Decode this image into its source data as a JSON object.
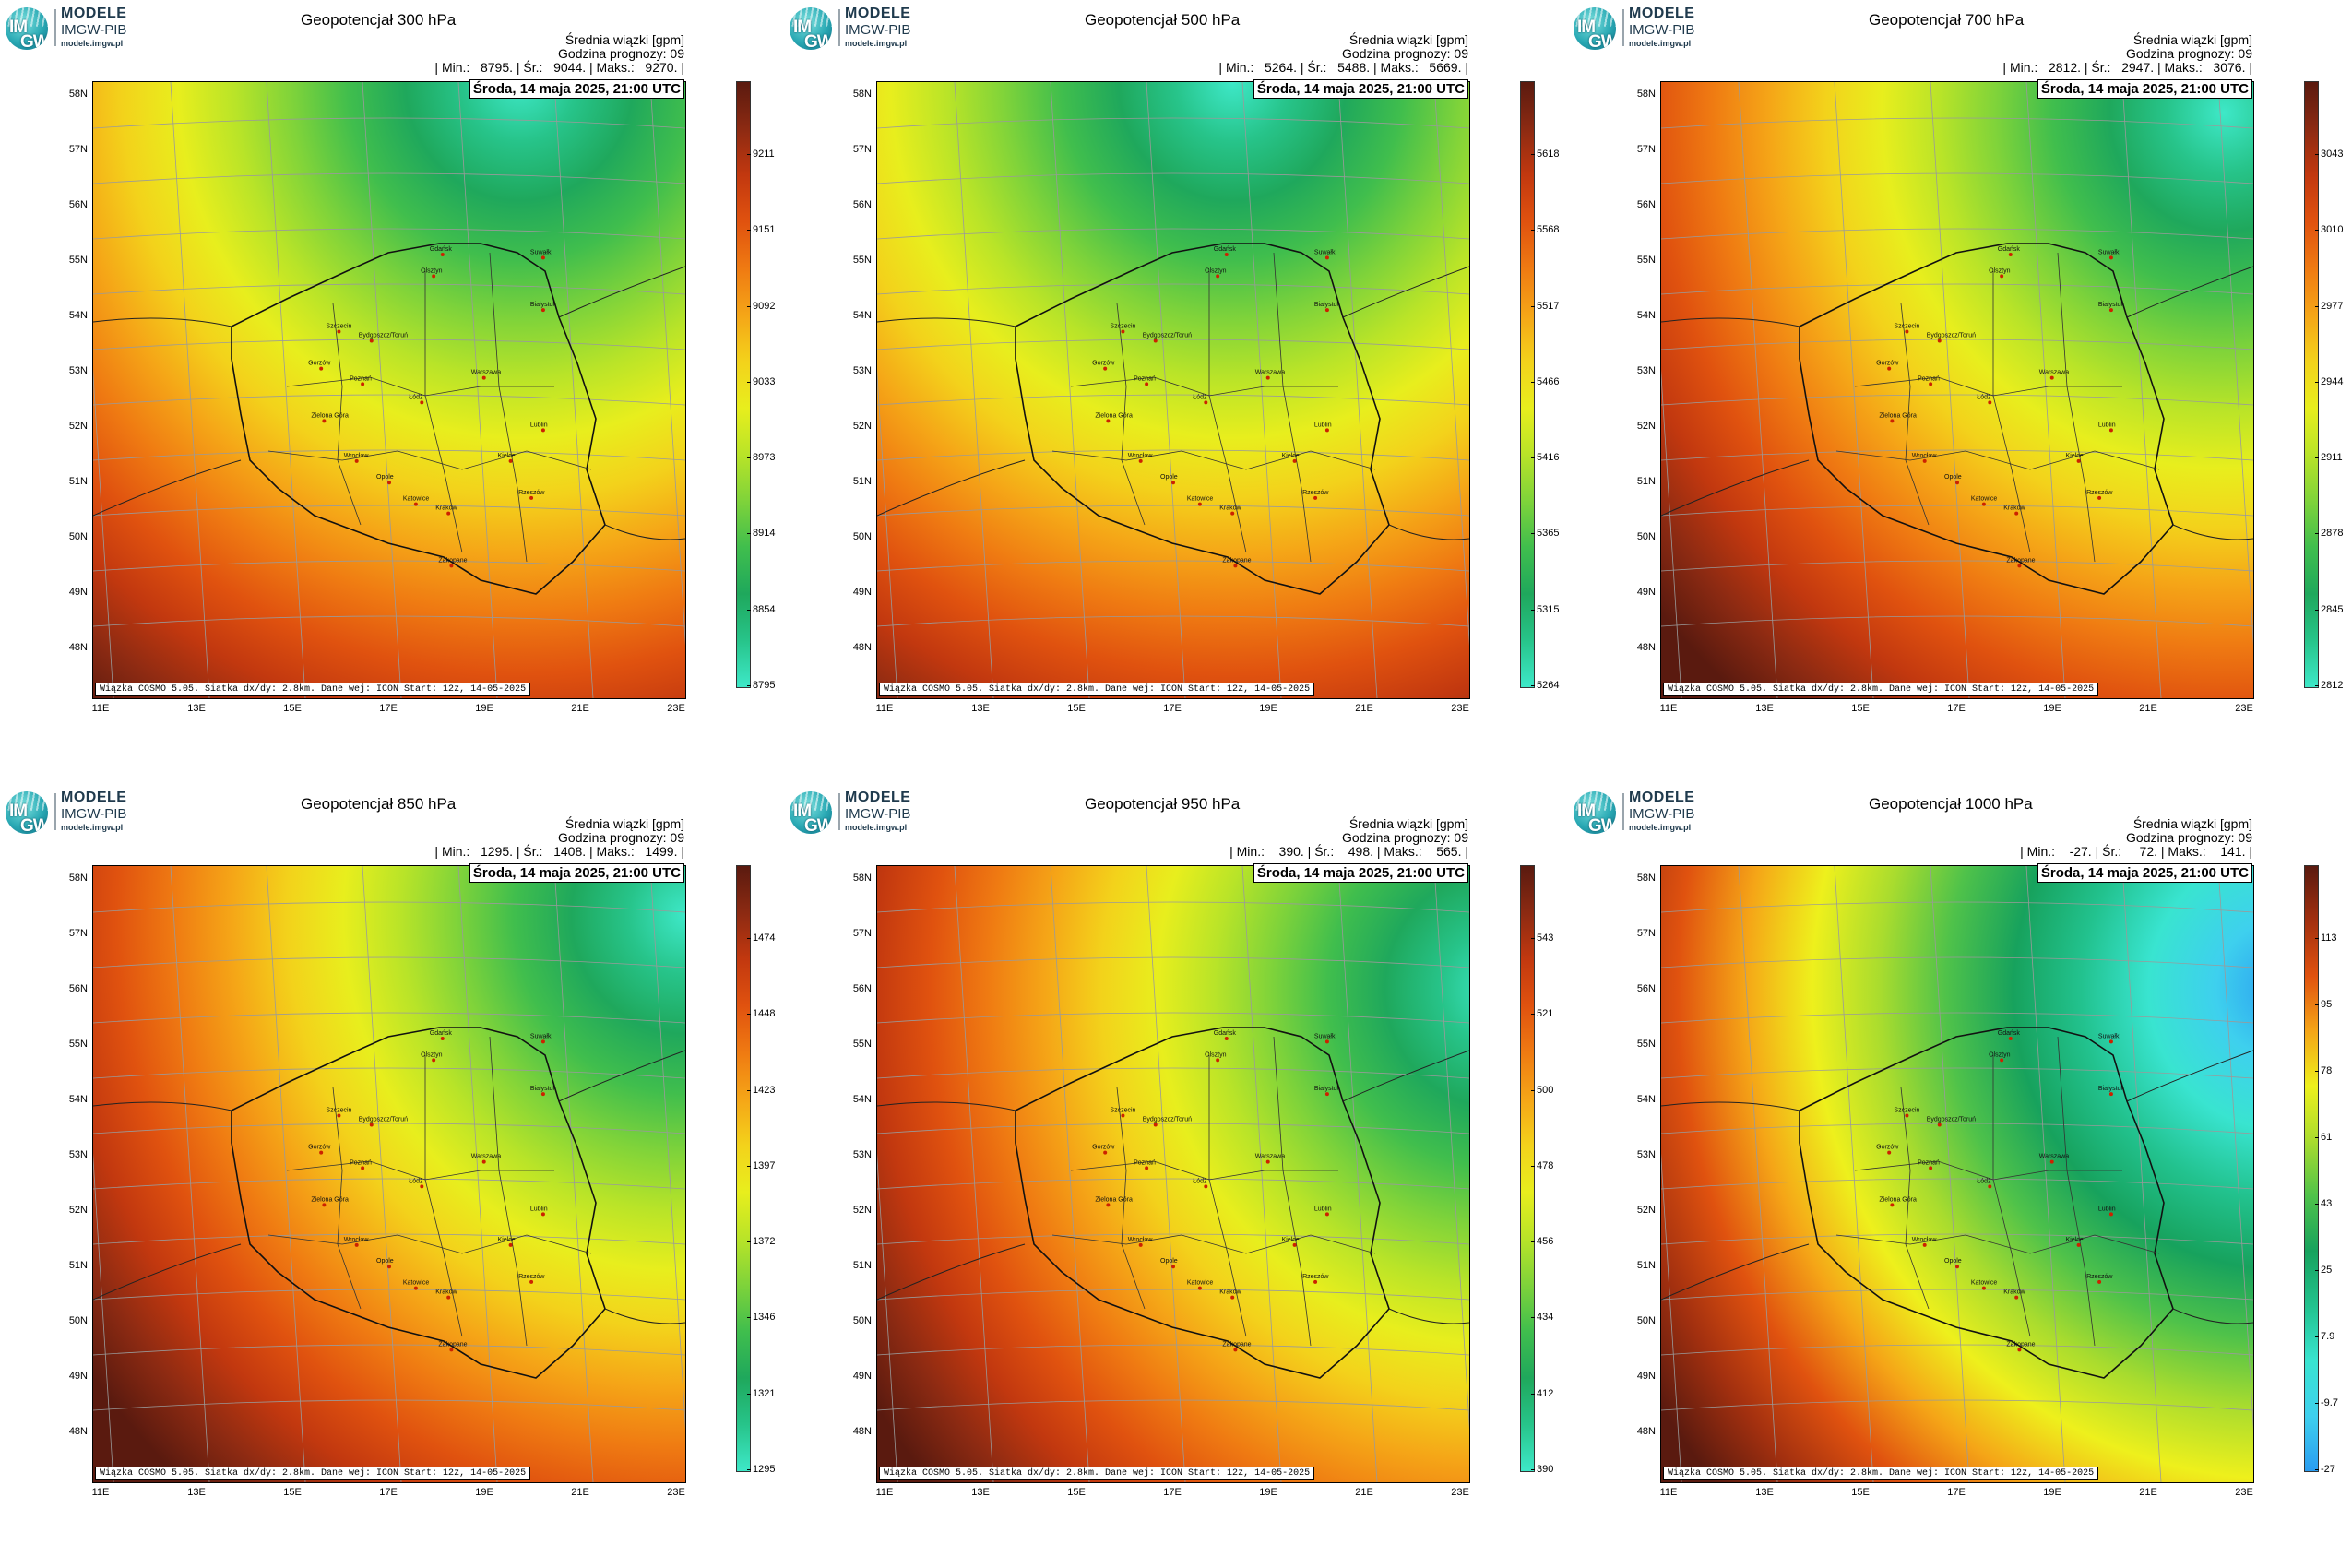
{
  "logo": {
    "line1": "MODELE",
    "line2": "IMGW-PIB",
    "line3": "modele.imgw.pl",
    "mark": "IM GW"
  },
  "common": {
    "units_label": "Średnia wiązki [gpm]",
    "forecast_hour": "Godzina prognozy: 09",
    "date": "Środa, 14 maja 2025, 21:00 UTC",
    "credit": "Wiązka COSMO 5.05. Siatka dx/dy: 2.8km. Dane wej: ICON Start: 12z, 14-05-2025",
    "lat_labels": [
      "58N",
      "57N",
      "56N",
      "55N",
      "54N",
      "53N",
      "52N",
      "51N",
      "50N",
      "49N",
      "48N"
    ],
    "lon_labels": [
      "11E",
      "13E",
      "15E",
      "17E",
      "19E",
      "21E",
      "23E"
    ],
    "cities": [
      "Gdańsk",
      "Olsztyn",
      "Suwałki",
      "Białystok",
      "Szczecin",
      "Bydgoszcz/Toruń",
      "Gorzów",
      "Poznań",
      "Warszawa",
      "Zielona Góra",
      "Łódź",
      "Lublin",
      "Wrocław",
      "Kielce",
      "Opole",
      "Rzeszów",
      "Katowice",
      "Kraków",
      "Zakopane"
    ]
  },
  "panels": [
    {
      "title": "Geopotencjał 300 hPa",
      "stats": "| Min.:   8795. | Śr.:   9044. | Maks.:   9270. |",
      "colorbar_ticks": [
        "9211",
        "9151",
        "9092",
        "9033",
        "8973",
        "8914",
        "8854",
        "8795"
      ],
      "colorbar_type": "warm",
      "field_center": [
        0.72,
        0.0
      ],
      "field_dir": "ne"
    },
    {
      "title": "Geopotencjał 500 hPa",
      "stats": "| Min.:   5264. | Śr.:   5488. | Maks.:   5669. |",
      "colorbar_ticks": [
        "5618",
        "5568",
        "5517",
        "5466",
        "5416",
        "5365",
        "5315",
        "5264"
      ],
      "colorbar_type": "warm",
      "field_center": [
        0.6,
        0.0
      ],
      "field_dir": "n"
    },
    {
      "title": "Geopotencjał 700 hPa",
      "stats": "| Min.:   2812. | Śr.:   2947. | Maks.:   3076. |",
      "colorbar_ticks": [
        "3043",
        "3010",
        "2977",
        "2944",
        "2911",
        "2878",
        "2845",
        "2812"
      ],
      "colorbar_type": "warm",
      "field_center": [
        0.95,
        0.05
      ],
      "field_dir": "ne"
    },
    {
      "title": "Geopotencjał 850 hPa",
      "stats": "| Min.:   1295. | Śr.:   1408. | Maks.:   1499. |",
      "colorbar_ticks": [
        "1474",
        "1448",
        "1423",
        "1397",
        "1372",
        "1346",
        "1321",
        "1295"
      ],
      "colorbar_type": "warm",
      "field_center": [
        1.0,
        0.08
      ],
      "field_dir": "ne"
    },
    {
      "title": "Geopotencjał 950 hPa",
      "stats": "| Min.:    390. | Śr.:    498. | Maks.:    565. |",
      "colorbar_ticks": [
        "543",
        "521",
        "500",
        "478",
        "456",
        "434",
        "412",
        "390"
      ],
      "colorbar_type": "warm",
      "field_center": [
        1.05,
        0.2
      ],
      "field_dir": "e"
    },
    {
      "title": "Geopotencjał 1000 hPa",
      "stats": "| Min.:    -27. | Śr.:     72. | Maks.:    141. |",
      "colorbar_ticks": [
        "113",
        "95",
        "78",
        "61",
        "43",
        "25",
        "7.9",
        "-9.7",
        "-27"
      ],
      "colorbar_type": "cool",
      "field_center": [
        1.05,
        0.2
      ],
      "field_dir": "e"
    }
  ]
}
